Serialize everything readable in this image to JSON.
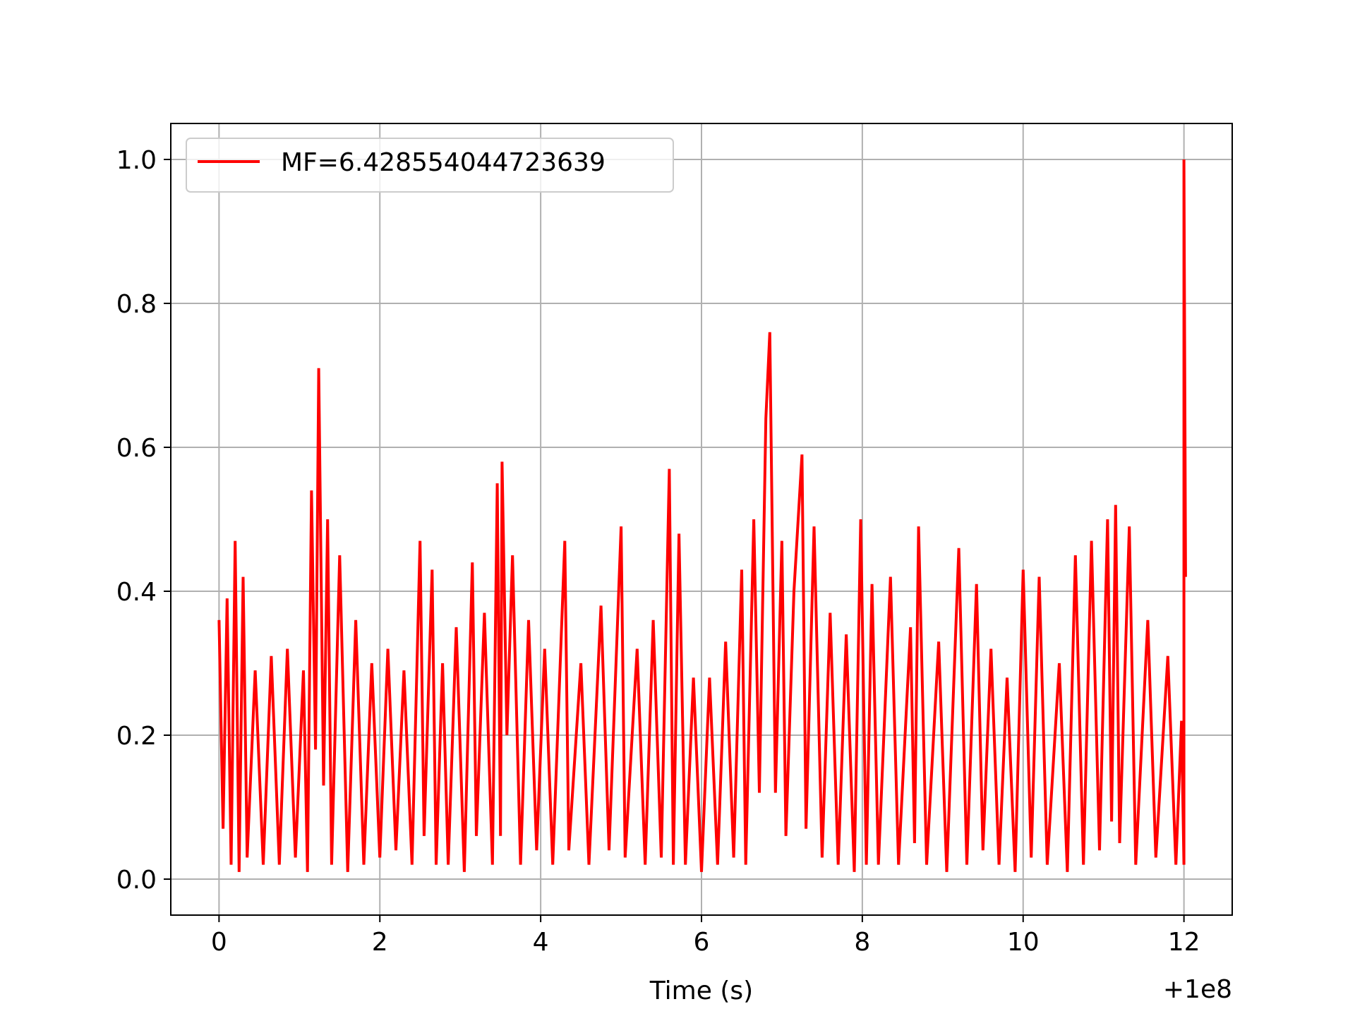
{
  "figure": {
    "xlabel": "Time (s)",
    "offset_label": "+1e8"
  },
  "chart_data": {
    "type": "line",
    "title": "",
    "xlabel": "Time (s)",
    "ylabel": "",
    "x_offset": "+1e8",
    "xlim": [
      -0.6,
      12.6
    ],
    "ylim": [
      -0.05,
      1.05
    ],
    "x_ticks": [
      0,
      2,
      4,
      6,
      8,
      10,
      12
    ],
    "x_tick_labels": [
      "0",
      "2",
      "4",
      "6",
      "8",
      "10",
      "12"
    ],
    "y_ticks": [
      0.0,
      0.2,
      0.4,
      0.6,
      0.8,
      1.0
    ],
    "y_tick_labels": [
      "0.0",
      "0.2",
      "0.4",
      "0.6",
      "0.8",
      "1.0"
    ],
    "grid": true,
    "legend_position": "top-left",
    "series": [
      {
        "name": "MF=6.428554044723639",
        "color": "#ff0000",
        "points": [
          [
            0.0,
            0.36
          ],
          [
            0.05,
            0.07
          ],
          [
            0.1,
            0.39
          ],
          [
            0.15,
            0.02
          ],
          [
            0.2,
            0.47
          ],
          [
            0.25,
            0.01
          ],
          [
            0.3,
            0.42
          ],
          [
            0.35,
            0.03
          ],
          [
            0.45,
            0.29
          ],
          [
            0.55,
            0.02
          ],
          [
            0.65,
            0.31
          ],
          [
            0.75,
            0.02
          ],
          [
            0.85,
            0.32
          ],
          [
            0.95,
            0.03
          ],
          [
            1.05,
            0.29
          ],
          [
            1.1,
            0.01
          ],
          [
            1.15,
            0.54
          ],
          [
            1.2,
            0.18
          ],
          [
            1.24,
            0.71
          ],
          [
            1.3,
            0.13
          ],
          [
            1.35,
            0.5
          ],
          [
            1.4,
            0.02
          ],
          [
            1.5,
            0.45
          ],
          [
            1.6,
            0.01
          ],
          [
            1.7,
            0.36
          ],
          [
            1.8,
            0.02
          ],
          [
            1.9,
            0.3
          ],
          [
            2.0,
            0.03
          ],
          [
            2.1,
            0.32
          ],
          [
            2.2,
            0.04
          ],
          [
            2.3,
            0.29
          ],
          [
            2.4,
            0.02
          ],
          [
            2.5,
            0.47
          ],
          [
            2.55,
            0.06
          ],
          [
            2.65,
            0.43
          ],
          [
            2.7,
            0.02
          ],
          [
            2.78,
            0.3
          ],
          [
            2.85,
            0.02
          ],
          [
            2.95,
            0.35
          ],
          [
            3.05,
            0.01
          ],
          [
            3.15,
            0.44
          ],
          [
            3.2,
            0.06
          ],
          [
            3.3,
            0.37
          ],
          [
            3.4,
            0.02
          ],
          [
            3.46,
            0.55
          ],
          [
            3.5,
            0.06
          ],
          [
            3.52,
            0.58
          ],
          [
            3.58,
            0.2
          ],
          [
            3.65,
            0.45
          ],
          [
            3.75,
            0.02
          ],
          [
            3.85,
            0.36
          ],
          [
            3.95,
            0.04
          ],
          [
            4.05,
            0.32
          ],
          [
            4.15,
            0.02
          ],
          [
            4.3,
            0.47
          ],
          [
            4.35,
            0.04
          ],
          [
            4.5,
            0.3
          ],
          [
            4.6,
            0.02
          ],
          [
            4.75,
            0.38
          ],
          [
            4.85,
            0.04
          ],
          [
            5.0,
            0.49
          ],
          [
            5.05,
            0.03
          ],
          [
            5.2,
            0.32
          ],
          [
            5.3,
            0.02
          ],
          [
            5.4,
            0.36
          ],
          [
            5.5,
            0.03
          ],
          [
            5.6,
            0.57
          ],
          [
            5.65,
            0.02
          ],
          [
            5.72,
            0.48
          ],
          [
            5.8,
            0.02
          ],
          [
            5.9,
            0.28
          ],
          [
            6.0,
            0.01
          ],
          [
            6.1,
            0.28
          ],
          [
            6.2,
            0.02
          ],
          [
            6.3,
            0.33
          ],
          [
            6.4,
            0.03
          ],
          [
            6.5,
            0.43
          ],
          [
            6.55,
            0.02
          ],
          [
            6.65,
            0.5
          ],
          [
            6.72,
            0.12
          ],
          [
            6.8,
            0.64
          ],
          [
            6.85,
            0.76
          ],
          [
            6.92,
            0.12
          ],
          [
            7.0,
            0.47
          ],
          [
            7.05,
            0.06
          ],
          [
            7.15,
            0.4
          ],
          [
            7.25,
            0.59
          ],
          [
            7.3,
            0.07
          ],
          [
            7.4,
            0.49
          ],
          [
            7.5,
            0.03
          ],
          [
            7.6,
            0.37
          ],
          [
            7.7,
            0.02
          ],
          [
            7.8,
            0.34
          ],
          [
            7.9,
            0.01
          ],
          [
            7.98,
            0.5
          ],
          [
            8.05,
            0.02
          ],
          [
            8.12,
            0.41
          ],
          [
            8.2,
            0.02
          ],
          [
            8.35,
            0.42
          ],
          [
            8.45,
            0.02
          ],
          [
            8.6,
            0.35
          ],
          [
            8.65,
            0.05
          ],
          [
            8.7,
            0.49
          ],
          [
            8.8,
            0.02
          ],
          [
            8.95,
            0.33
          ],
          [
            9.05,
            0.01
          ],
          [
            9.2,
            0.46
          ],
          [
            9.3,
            0.02
          ],
          [
            9.42,
            0.41
          ],
          [
            9.5,
            0.04
          ],
          [
            9.6,
            0.32
          ],
          [
            9.7,
            0.02
          ],
          [
            9.8,
            0.28
          ],
          [
            9.9,
            0.01
          ],
          [
            10.0,
            0.43
          ],
          [
            10.1,
            0.03
          ],
          [
            10.2,
            0.42
          ],
          [
            10.3,
            0.02
          ],
          [
            10.45,
            0.3
          ],
          [
            10.55,
            0.01
          ],
          [
            10.65,
            0.45
          ],
          [
            10.75,
            0.02
          ],
          [
            10.85,
            0.47
          ],
          [
            10.95,
            0.04
          ],
          [
            11.05,
            0.5
          ],
          [
            11.1,
            0.08
          ],
          [
            11.15,
            0.52
          ],
          [
            11.2,
            0.05
          ],
          [
            11.32,
            0.49
          ],
          [
            11.4,
            0.02
          ],
          [
            11.55,
            0.36
          ],
          [
            11.65,
            0.03
          ],
          [
            11.8,
            0.31
          ],
          [
            11.9,
            0.02
          ],
          [
            11.97,
            0.22
          ],
          [
            12.0,
            0.02
          ],
          [
            12.0,
            1.0
          ],
          [
            12.02,
            0.42
          ]
        ]
      }
    ]
  }
}
